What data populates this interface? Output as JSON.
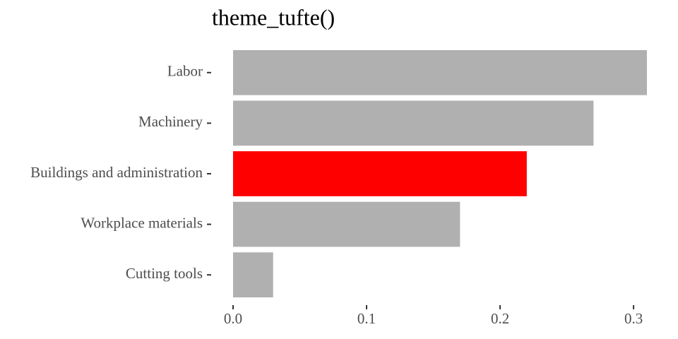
{
  "chart_data": {
    "type": "barh",
    "title": "theme_tufte()",
    "categories": [
      "Labor",
      "Machinery",
      "Buildings and administration",
      "Workplace materials",
      "Cutting tools"
    ],
    "values": [
      0.31,
      0.27,
      0.22,
      0.17,
      0.03
    ],
    "colors": [
      "#b0b0b0",
      "#b0b0b0",
      "#ff0000",
      "#b0b0b0",
      "#b0b0b0"
    ],
    "xlim": [
      0,
      0.31
    ],
    "xticks": [
      {
        "value": 0,
        "label": "0.0"
      },
      0.1,
      0.2,
      0.3
    ],
    "grid": false
  }
}
